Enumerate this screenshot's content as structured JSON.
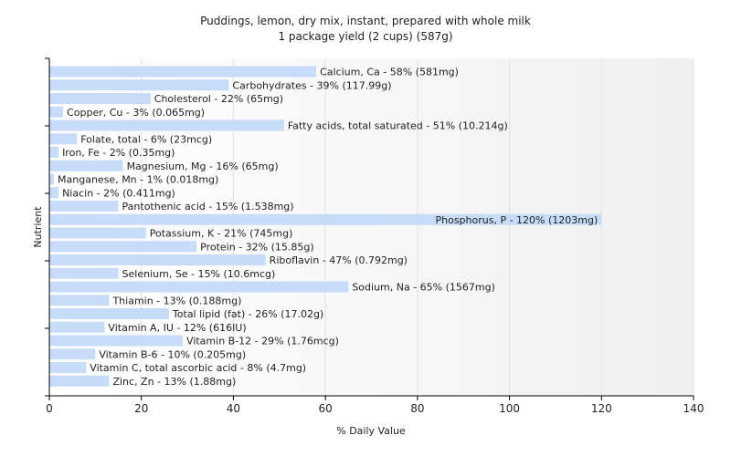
{
  "chart_data": {
    "type": "bar",
    "orientation": "horizontal",
    "title": "Puddings, lemon, dry mix, instant, prepared with whole milk",
    "subtitle": "1 package yield (2 cups) (587g)",
    "xlabel": "% Daily Value",
    "ylabel": "Nutrient",
    "xlim": [
      0,
      140
    ],
    "xticks": [
      0,
      20,
      40,
      60,
      80,
      100,
      120,
      140
    ],
    "grid": true,
    "bar_color": "#c6dcf8",
    "categories": [
      "Calcium, Ca",
      "Carbohydrates",
      "Cholesterol",
      "Copper, Cu",
      "Fatty acids, total saturated",
      "Folate, total",
      "Iron, Fe",
      "Magnesium, Mg",
      "Manganese, Mn",
      "Niacin",
      "Pantothenic acid",
      "Phosphorus, P",
      "Potassium, K",
      "Protein",
      "Riboflavin",
      "Selenium, Se",
      "Sodium, Na",
      "Thiamin",
      "Total lipid (fat)",
      "Vitamin A, IU",
      "Vitamin B-12",
      "Vitamin B-6",
      "Vitamin C, total ascorbic acid",
      "Zinc, Zn"
    ],
    "values": [
      58,
      39,
      22,
      3,
      51,
      6,
      2,
      16,
      1,
      2,
      15,
      120,
      21,
      32,
      47,
      15,
      65,
      13,
      26,
      12,
      29,
      10,
      8,
      13
    ],
    "labels": [
      "Calcium, Ca - 58% (581mg)",
      "Carbohydrates - 39% (117.99g)",
      "Cholesterol - 22% (65mg)",
      "Copper, Cu - 3% (0.065mg)",
      "Fatty acids, total saturated - 51% (10.214g)",
      "Folate, total - 6% (23mcg)",
      "Iron, Fe - 2% (0.35mg)",
      "Magnesium, Mg - 16% (65mg)",
      "Manganese, Mn - 1% (0.018mg)",
      "Niacin - 2% (0.411mg)",
      "Pantothenic acid - 15% (1.538mg)",
      "Phosphorus, P - 120% (1203mg)",
      "Potassium, K - 21% (745mg)",
      "Protein - 32% (15.85g)",
      "Riboflavin - 47% (0.792mg)",
      "Selenium, Se - 15% (10.6mcg)",
      "Sodium, Na - 65% (1567mg)",
      "Thiamin - 13% (0.188mg)",
      "Total lipid (fat) - 26% (17.02g)",
      "Vitamin A, IU - 12% (616IU)",
      "Vitamin B-12 - 29% (1.76mcg)",
      "Vitamin B-6 - 10% (0.205mg)",
      "Vitamin C, total ascorbic acid - 8% (4.7mg)",
      "Zinc, Zn - 13% (1.88mg)"
    ]
  }
}
